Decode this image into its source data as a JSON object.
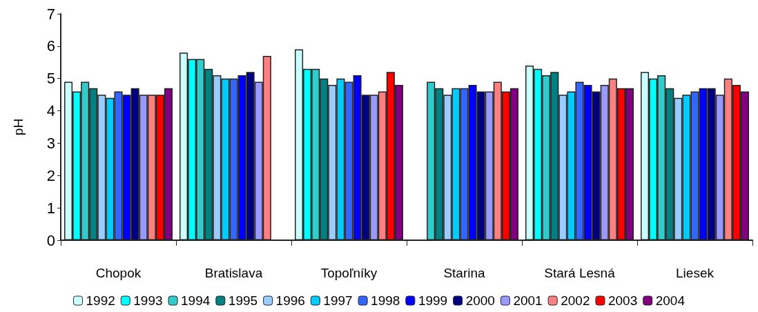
{
  "chart_data": {
    "type": "bar",
    "ylabel": "pH",
    "categories": [
      "Chopok",
      "Bratislava",
      "Topoľníky",
      "Starina",
      "Stará Lesná",
      "Liesek"
    ],
    "series": [
      {
        "name": "1992",
        "color": "#ccffff",
        "values": [
          4.9,
          5.8,
          5.9,
          null,
          5.4,
          5.2
        ]
      },
      {
        "name": "1993",
        "color": "#00ffff",
        "values": [
          4.6,
          5.6,
          5.3,
          null,
          5.3,
          5.0
        ]
      },
      {
        "name": "1994",
        "color": "#33cccc",
        "values": [
          4.9,
          5.6,
          5.3,
          4.9,
          5.1,
          5.1
        ]
      },
      {
        "name": "1995",
        "color": "#008080",
        "values": [
          4.7,
          5.3,
          5.0,
          4.7,
          5.2,
          4.7
        ]
      },
      {
        "name": "1996",
        "color": "#99ccff",
        "values": [
          4.5,
          5.1,
          4.8,
          4.5,
          4.5,
          4.4
        ]
      },
      {
        "name": "1997",
        "color": "#00ccff",
        "values": [
          4.4,
          5.0,
          5.0,
          4.7,
          4.6,
          4.5
        ]
      },
      {
        "name": "1998",
        "color": "#3366ff",
        "values": [
          4.6,
          5.0,
          4.9,
          4.7,
          4.9,
          4.6
        ]
      },
      {
        "name": "1999",
        "color": "#0000ff",
        "values": [
          4.5,
          5.1,
          5.1,
          4.8,
          4.8,
          4.7
        ]
      },
      {
        "name": "2000",
        "color": "#000080",
        "values": [
          4.7,
          5.2,
          4.5,
          4.6,
          4.6,
          4.7
        ]
      },
      {
        "name": "2001",
        "color": "#9999ff",
        "values": [
          4.5,
          4.9,
          4.5,
          4.6,
          4.8,
          4.5
        ]
      },
      {
        "name": "2002",
        "color": "#ff8080",
        "values": [
          4.5,
          5.7,
          4.6,
          4.9,
          5.0,
          5.0
        ]
      },
      {
        "name": "2003",
        "color": "#ff0000",
        "values": [
          4.5,
          null,
          5.2,
          4.6,
          4.7,
          4.8
        ]
      },
      {
        "name": "2004",
        "color": "#800080",
        "values": [
          4.7,
          null,
          4.8,
          4.7,
          4.7,
          4.6
        ]
      }
    ],
    "ylim": [
      0,
      7
    ],
    "yticks": [
      0,
      1,
      2,
      3,
      4,
      5,
      6,
      7
    ],
    "grid": false,
    "legend": "bottom"
  }
}
